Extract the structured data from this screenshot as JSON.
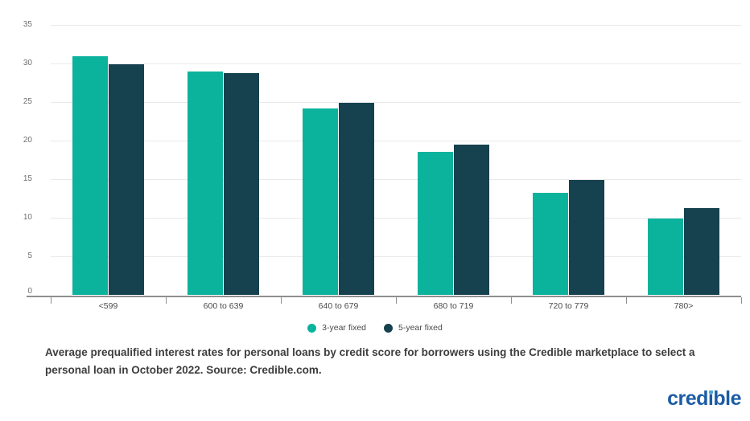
{
  "chart_data": {
    "type": "bar",
    "title": "",
    "xlabel": "",
    "ylabel": "",
    "categories": [
      "<599",
      "600 to 639",
      "640 to 679",
      "680 to 719",
      "720 to 779",
      "780>"
    ],
    "series": [
      {
        "name": "3-year fixed",
        "color": "#0bb39c",
        "values": [
          30.9,
          29.0,
          24.2,
          18.5,
          13.2,
          9.9
        ]
      },
      {
        "name": "5-year fixed",
        "color": "#16414f",
        "values": [
          29.9,
          28.7,
          24.9,
          19.5,
          14.9,
          11.2
        ]
      }
    ],
    "ylim": [
      0,
      35
    ],
    "ytick_step": 5,
    "yticks": [
      0,
      5,
      10,
      15,
      20,
      25,
      30,
      35
    ],
    "grid": true,
    "legend_position": "bottom-center"
  },
  "caption": {
    "text": "Average prequalified interest rates for personal loans by credit score for borrowers using the Credible marketplace to select a personal loan in October 2022. Source: Credible.com."
  },
  "logo": {
    "text_prefix": "cred",
    "text_dotless_i": "ı",
    "text_suffix": "ble",
    "color": "#1b5ca6",
    "dot_color": "#45a8d9"
  }
}
